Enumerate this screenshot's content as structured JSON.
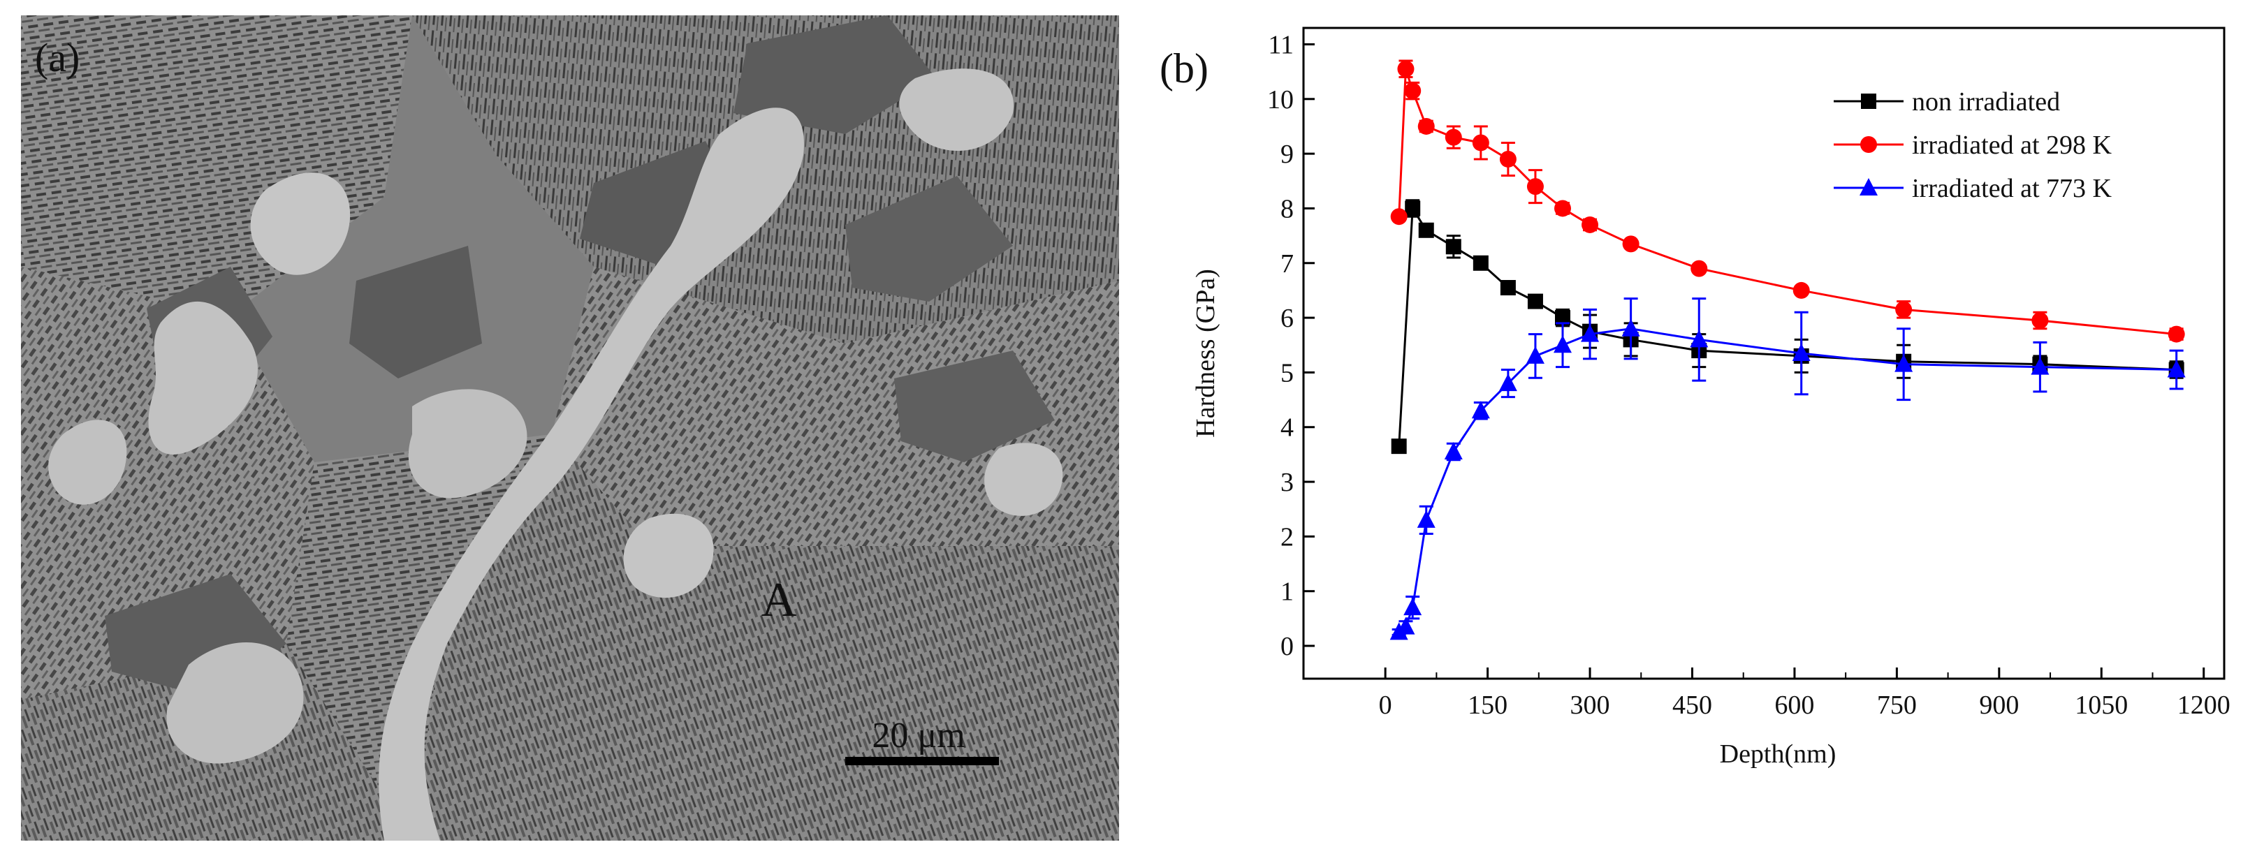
{
  "panel_a": {
    "label": "(a)",
    "region_label": "A",
    "scale_bar_label": "20 μm"
  },
  "panel_b": {
    "label": "(b)"
  },
  "chart_data": {
    "type": "line",
    "xlabel": "Depth(nm)",
    "ylabel": "Hardness (GPa)",
    "xlim": [
      -120,
      1230
    ],
    "ylim": [
      -0.6,
      11.3
    ],
    "xticks": [
      0,
      150,
      300,
      450,
      600,
      750,
      900,
      1050,
      1200
    ],
    "yticks": [
      0,
      1,
      2,
      3,
      4,
      5,
      6,
      7,
      8,
      9,
      10,
      11
    ],
    "legend_position": "top-right",
    "grid": false,
    "series": [
      {
        "name": "non irradiated",
        "color": "#000000",
        "marker": "square",
        "x": [
          20,
          40,
          60,
          100,
          140,
          180,
          220,
          260,
          300,
          360,
          460,
          610,
          760,
          960,
          1160
        ],
        "y": [
          3.65,
          8.0,
          7.6,
          7.3,
          7.0,
          6.55,
          6.3,
          6.0,
          5.75,
          5.6,
          5.4,
          5.3,
          5.2,
          5.15,
          5.05
        ],
        "err": [
          0.05,
          0.15,
          0.1,
          0.2,
          0.1,
          0.1,
          0.1,
          0.15,
          0.3,
          0.3,
          0.3,
          0.3,
          0.3,
          0.15,
          0.15
        ]
      },
      {
        "name": "irradiated at 298 K",
        "color": "#ff0000",
        "marker": "circle",
        "x": [
          20,
          30,
          40,
          60,
          100,
          140,
          180,
          220,
          260,
          300,
          360,
          460,
          610,
          760,
          960,
          1160
        ],
        "y": [
          7.85,
          10.55,
          10.15,
          9.5,
          9.3,
          9.2,
          8.9,
          8.4,
          8.0,
          7.7,
          7.35,
          6.9,
          6.5,
          6.15,
          5.95,
          5.7
        ],
        "err": [
          0.05,
          0.15,
          0.15,
          0.1,
          0.2,
          0.3,
          0.3,
          0.3,
          0.1,
          0.1,
          0.05,
          0.05,
          0.05,
          0.15,
          0.15,
          0.1
        ]
      },
      {
        "name": "irradiated at 773 K",
        "color": "#0000ff",
        "marker": "triangle",
        "x": [
          20,
          30,
          40,
          60,
          100,
          140,
          180,
          220,
          260,
          300,
          360,
          460,
          610,
          760,
          960,
          1160
        ],
        "y": [
          0.25,
          0.35,
          0.7,
          2.3,
          3.55,
          4.3,
          4.8,
          5.3,
          5.5,
          5.7,
          5.8,
          5.6,
          5.35,
          5.15,
          5.1,
          5.05
        ],
        "err": [
          0.05,
          0.1,
          0.2,
          0.25,
          0.15,
          0.15,
          0.25,
          0.4,
          0.4,
          0.45,
          0.55,
          0.75,
          0.75,
          0.65,
          0.45,
          0.35
        ]
      }
    ]
  }
}
